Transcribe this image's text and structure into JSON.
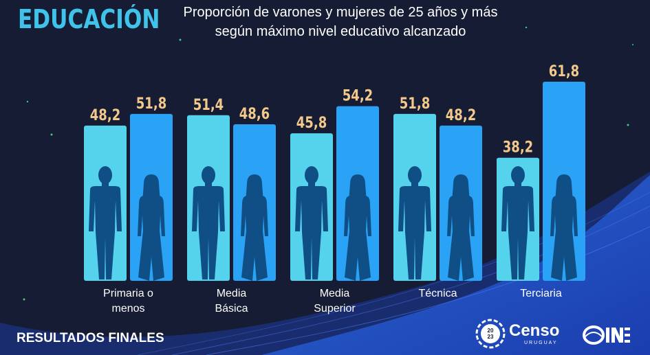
{
  "header": {
    "section": "EDUCACIÓN",
    "title_line1": "Proporción de varones y mujeres de 25 años y más",
    "title_line2": "según máximo nivel educativo alcanzado"
  },
  "footer": {
    "left_text": "RESULTADOS FINALES",
    "censo_logo": "Censo",
    "censo_sub": "URUGUAY",
    "censo_year": "2023",
    "ine_logo": "INE"
  },
  "colors": {
    "background": "#161c33",
    "varones_bar": "#55d2ec",
    "mujeres_bar": "#2aa2f5",
    "value_label": "#f3c98b",
    "category_label": "#ffffff",
    "silhouette": "#0f4f86"
  },
  "chart_data": {
    "type": "bar",
    "title": "Proporción de varones y mujeres de 25 años y más según máximo nivel educativo alcanzado",
    "categories": [
      [
        "Primaria o",
        "menos"
      ],
      [
        "Media",
        "Básica"
      ],
      [
        "Media",
        "Superior"
      ],
      [
        "Técnica"
      ],
      [
        "Terciaria"
      ]
    ],
    "series": [
      {
        "icon": "man-silhouette-icon",
        "values": [
          48.2,
          51.4,
          45.8,
          51.8,
          38.2
        ],
        "labels": [
          "48,2",
          "51,4",
          "45,8",
          "51,8",
          "38,2"
        ]
      },
      {
        "icon": "woman-silhouette-icon",
        "values": [
          51.8,
          48.6,
          54.2,
          48.2,
          61.8
        ],
        "labels": [
          "51,8",
          "48,6",
          "54,2",
          "48,2",
          "61,8"
        ]
      }
    ],
    "ylim": [
      0,
      62
    ],
    "grid": false
  }
}
